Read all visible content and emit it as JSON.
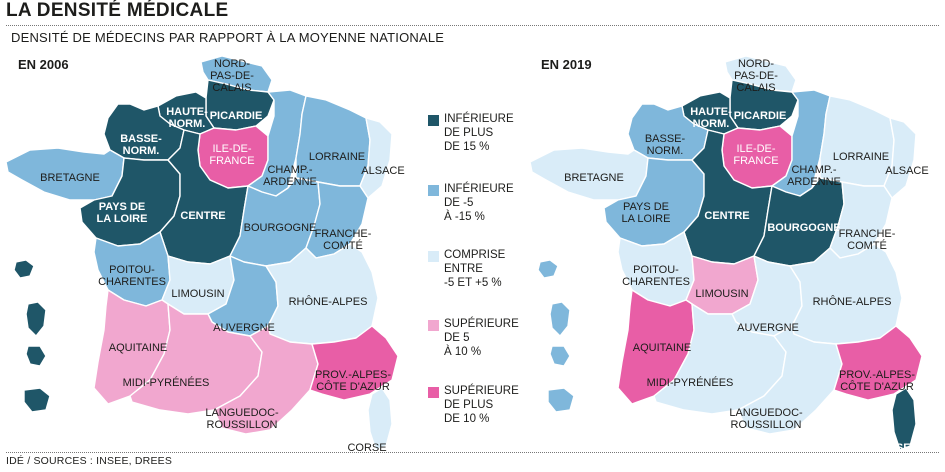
{
  "title": "LA DENSITÉ MÉDICALE",
  "subtitle": "DENSITÉ DE MÉDECINS PAR RAPPORT À LA MOYENNE  NATIONALE",
  "source": "IDÉ / SOURCES : INSEE, DREES",
  "colors": {
    "dark": "#1f5668",
    "mid": "#7fb7db",
    "light": "#d9ecf8",
    "pink_light": "#f1a7cf",
    "pink": "#e85ea6"
  },
  "legend": [
    {
      "key": "dark",
      "label": "INFÉRIEURE\nDE PLUS\nDE 15 %"
    },
    {
      "key": "mid",
      "label": "INFÉRIEURE\nDE -5\nÀ -15 %"
    },
    {
      "key": "light",
      "label": "COMPRISE\nENTRE\n-5 ET +5 %"
    },
    {
      "key": "pink_light",
      "label": "SUPÉRIEURE\nDE 5\nÀ 10 %"
    },
    {
      "key": "pink",
      "label": "SUPÉRIEURE\nDE PLUS\nDE 10 %"
    }
  ],
  "maps": [
    {
      "year": "EN 2006",
      "regions": {
        "nord": "mid",
        "picardie": "dark",
        "haute_normandie": "dark",
        "basse_normandie": "dark",
        "bretagne": "mid",
        "ile_de_france": "pink",
        "champagne": "mid",
        "lorraine": "mid",
        "alsace": "light",
        "pays_de_la_loire": "dark",
        "centre": "dark",
        "bourgogne": "mid",
        "franche_comte": "mid",
        "poitou": "mid",
        "limousin": "light",
        "auvergne": "mid",
        "rhone_alpes": "light",
        "aquitaine": "pink_light",
        "midi_pyrenees": "pink_light",
        "languedoc": "pink_light",
        "paca": "pink",
        "corse": "light",
        "dom": "dark"
      }
    },
    {
      "year": "EN 2019",
      "regions": {
        "nord": "light",
        "picardie": "dark",
        "haute_normandie": "dark",
        "basse_normandie": "mid",
        "bretagne": "light",
        "ile_de_france": "pink",
        "champagne": "mid",
        "lorraine": "light",
        "alsace": "light",
        "pays_de_la_loire": "mid",
        "centre": "dark",
        "bourgogne": "dark",
        "franche_comte": "light",
        "poitou": "light",
        "limousin": "pink_light",
        "auvergne": "light",
        "rhone_alpes": "light",
        "aquitaine": "pink",
        "midi_pyrenees": "light",
        "languedoc": "light",
        "paca": "pink",
        "corse": "dark",
        "dom": "mid"
      }
    }
  ],
  "labels": {
    "nord": "NORD-\nPAS-DE-\nCALAIS",
    "picardie": "PICARDIE",
    "haute_normandie": "HAUTE-\nNORM.",
    "basse_normandie": "BASSE-\nNORM.",
    "bretagne": "BRETAGNE",
    "ile_de_france": "ILE-DE-\nFRANCE",
    "champagne": "CHAMP.-\nARDENNE",
    "lorraine": "LORRAINE",
    "alsace": "ALSACE",
    "pays_de_la_loire": "PAYS DE\nLA LOIRE",
    "centre": "CENTRE",
    "bourgogne": "BOURGOGNE",
    "franche_comte": "FRANCHE-\nCOMTÉ",
    "poitou": "POITOU-\nCHARENTES",
    "limousin": "LIMOUSIN",
    "auvergne": "AUVERGNE",
    "rhone_alpes": "RHÔNE-ALPES",
    "aquitaine": "AQUITAINE",
    "midi_pyrenees": "MIDI-PYRÉNÉES",
    "languedoc": "LANGUEDOC-\nROUSSILLON",
    "paca": "PROV.-ALPES-\nCÔTE D'AZUR",
    "corse": "CORSE"
  }
}
